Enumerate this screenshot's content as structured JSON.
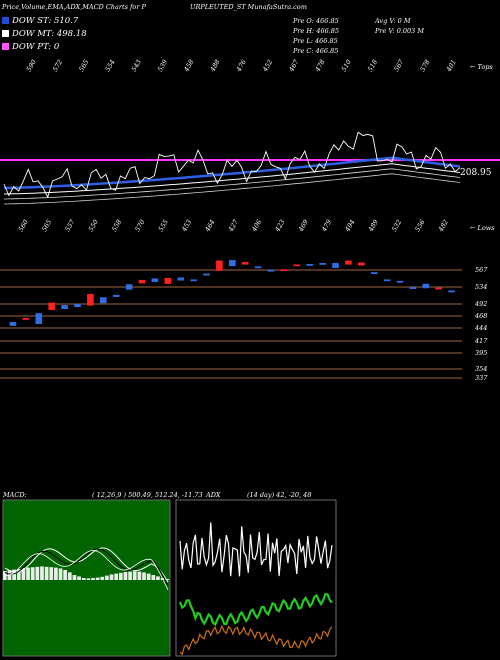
{
  "header": {
    "title": "Price,Volume,EMA,ADX,MACD Charts for P",
    "title2": "URPLEUTED_ST MunafaSutra.com",
    "legend": [
      {
        "label": "DOW ST: 510.7",
        "color": "#1e4bd8"
      },
      {
        "label": "DOW MT: 498.18",
        "color": "#ffffff"
      },
      {
        "label": "DOW PT: 0",
        "color": "#ff55ff"
      }
    ],
    "pre": [
      "Pre O: 466.85",
      "Pre H: 466.85",
      "Pre L: 466.85",
      "Pre C: 466.85"
    ],
    "avg": [
      "Avg V: 0 M",
      "Pre V: 0.003 M"
    ]
  },
  "colors": {
    "ema_short": "#2f5fe6",
    "ema_mid": "#ffffff",
    "pink_line": "#ff33ff",
    "up_candle": "#2f6fe6",
    "down_candle": "#ff2020",
    "grid_orange": "#a0643c",
    "macd_green": "#22bb22",
    "adx_green": "#22cc22",
    "adx_orange": "#d07010"
  },
  "chart_data": [
    {
      "type": "line",
      "panel": "price-ema",
      "top_labels": [
        "590",
        "572",
        "565",
        "554",
        "543",
        "539",
        "458",
        "488",
        "476",
        "452",
        "467",
        "478",
        "510",
        "518",
        "567",
        "578",
        "401"
      ],
      "bottom_labels": [
        "560",
        "565",
        "557",
        "550",
        "558",
        "570",
        "555",
        "453",
        "464",
        "427",
        "406",
        "423",
        "469",
        "479",
        "494",
        "489",
        "532",
        "556",
        "482"
      ],
      "corner_top": "← Tops",
      "corner_bottom": "← Lows",
      "last_price_label": "208.95",
      "pink_level_label": ""
    },
    {
      "type": "candlestick",
      "panel": "candles",
      "y_ticks": [
        "567",
        "534",
        "492",
        "468",
        "444",
        "417",
        "395",
        "354",
        "337"
      ],
      "candles": [
        {
          "o": 412,
          "c": 405,
          "d": 1
        },
        {
          "o": 420,
          "c": 418,
          "d": 0
        },
        {
          "o": 409,
          "c": 430,
          "d": 1
        },
        {
          "o": 438,
          "c": 452,
          "d": 0
        },
        {
          "o": 440,
          "c": 447,
          "d": 1
        },
        {
          "o": 444,
          "c": 449,
          "d": 1
        },
        {
          "o": 470,
          "c": 447,
          "d": 0
        },
        {
          "o": 452,
          "c": 463,
          "d": 1
        },
        {
          "o": 465,
          "c": 468,
          "d": 1
        },
        {
          "o": 490,
          "c": 480,
          "d": 1
        },
        {
          "o": 499,
          "c": 493,
          "d": 0
        },
        {
          "o": 502,
          "c": 496,
          "d": 1
        },
        {
          "o": 503,
          "c": 492,
          "d": 0
        },
        {
          "o": 499,
          "c": 504,
          "d": 1
        },
        {
          "o": 500,
          "c": 500,
          "d": 1
        },
        {
          "o": 512,
          "c": 512,
          "d": 1
        },
        {
          "o": 519,
          "c": 539,
          "d": 0
        },
        {
          "o": 540,
          "c": 529,
          "d": 1
        },
        {
          "o": 532,
          "c": 536,
          "d": 0
        },
        {
          "o": 527,
          "c": 527,
          "d": 1
        },
        {
          "o": 520,
          "c": 520,
          "d": 1
        },
        {
          "o": 521,
          "c": 521,
          "d": 0
        },
        {
          "o": 530,
          "c": 531,
          "d": 0
        },
        {
          "o": 532,
          "c": 532,
          "d": 1
        },
        {
          "o": 534,
          "c": 532,
          "d": 1
        },
        {
          "o": 525,
          "c": 534,
          "d": 1
        },
        {
          "o": 539,
          "c": 532,
          "d": 0
        },
        {
          "o": 535,
          "c": 530,
          "d": 0
        },
        {
          "o": 515,
          "c": 515,
          "d": 1
        },
        {
          "o": 500,
          "c": 500,
          "d": 1
        },
        {
          "o": 497,
          "c": 497,
          "d": 1
        },
        {
          "o": 484,
          "c": 484,
          "d": 1
        },
        {
          "o": 483,
          "c": 491,
          "d": 1
        },
        {
          "o": 483,
          "c": 481,
          "d": 0
        },
        {
          "o": 477,
          "c": 477,
          "d": 1
        }
      ]
    },
    {
      "type": "area",
      "panel": "macd",
      "label": "MACD:",
      "values_text": "( 12,26,9 ) 500.49, 512.24, -11.73",
      "histogram": [
        0.45,
        0.5,
        0.52,
        0.55,
        0.6,
        0.62,
        0.64,
        0.66,
        0.68,
        0.66,
        0.64,
        0.62,
        0.58,
        0.5,
        0.38,
        0.25,
        0.18,
        0.1,
        0.08,
        0.1,
        0.12,
        0.16,
        0.22,
        0.28,
        0.32,
        0.36,
        0.4,
        0.42,
        0.44,
        0.42,
        0.38,
        0.32,
        0.25,
        0.18,
        0.1,
        0.05
      ]
    },
    {
      "type": "line",
      "panel": "adx",
      "label": "ADX",
      "values_text": "(14 day) 42, -20, 48"
    }
  ]
}
